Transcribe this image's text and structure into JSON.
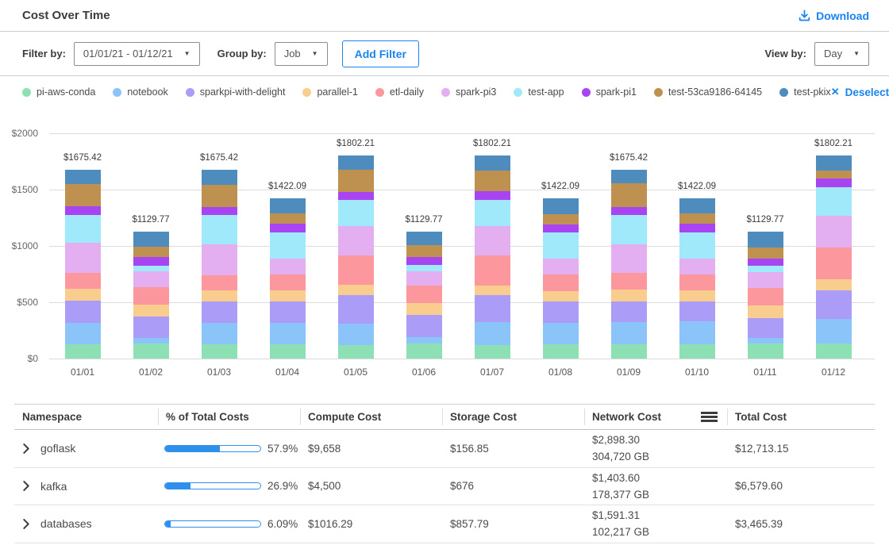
{
  "header": {
    "title": "Cost Over Time",
    "download_label": "Download"
  },
  "toolbar": {
    "filter_by_label": "Filter by:",
    "filter_value": "01/01/21 - 01/12/21",
    "group_by_label": "Group by:",
    "group_value": "Job",
    "add_filter_label": "Add Filter",
    "view_by_label": "View by:",
    "view_value": "Day"
  },
  "icons": {
    "caret_down": "▼",
    "close": "✕"
  },
  "legend": {
    "deselect_label": "Deselect All"
  },
  "colors": {
    "accent_blue": "#1a84ee",
    "progress_blue": "#2e90ea"
  },
  "chart_data": {
    "type": "bar",
    "stacked": true,
    "title": "Cost Over Time",
    "xlabel": "",
    "ylabel": "",
    "ylim": [
      0,
      2000
    ],
    "grid": true,
    "legend_position": "top",
    "y_tick_labels": [
      "$0",
      "$500",
      "$1000",
      "$1500",
      "$2000"
    ],
    "y_tick_values": [
      0,
      500,
      1000,
      1500,
      2000
    ],
    "categories": [
      "01/01",
      "01/02",
      "01/03",
      "01/04",
      "01/05",
      "01/06",
      "01/07",
      "01/08",
      "01/09",
      "01/10",
      "01/11",
      "01/12"
    ],
    "totals": [
      1675.42,
      1129.77,
      1675.42,
      1422.09,
      1802.21,
      1129.77,
      1802.21,
      1422.09,
      1675.42,
      1422.09,
      1129.77,
      1802.21
    ],
    "total_labels": [
      "$1675.42",
      "$1129.77",
      "$1675.42",
      "$1422.09",
      "$1802.21",
      "$1129.77",
      "$1802.21",
      "$1422.09",
      "$1675.42",
      "$1422.09",
      "$1129.77",
      "$1802.21"
    ],
    "series": [
      {
        "name": "pi-aws-conda",
        "color": "#8ce0b4",
        "values": [
          127,
          133,
          127,
          127,
          122,
          134,
          122,
          127,
          127,
          127,
          131,
          132
        ]
      },
      {
        "name": "notebook",
        "color": "#8ac4f8",
        "values": [
          188,
          51,
          188,
          188,
          188,
          56,
          200,
          188,
          195,
          207,
          51,
          220
        ]
      },
      {
        "name": "sparkpi-with-delight",
        "color": "#ab9cf8",
        "values": [
          196,
          191,
          195,
          195,
          251,
          199,
          242,
          190,
          183,
          176,
          177,
          256
        ]
      },
      {
        "name": "parallel-1",
        "color": "#f8cd8d",
        "values": [
          106,
          103,
          98,
          93,
          94,
          107,
          87,
          95,
          109,
          93,
          114,
          94
        ]
      },
      {
        "name": "etl-daily",
        "color": "#fc989d",
        "values": [
          147,
          154,
          129,
          147,
          258,
          153,
          263,
          145,
          146,
          147,
          152,
          283
        ]
      },
      {
        "name": "spark-pi3",
        "color": "#e4aff0",
        "values": [
          262,
          141,
          280,
          139,
          265,
          123,
          265,
          140,
          256,
          139,
          146,
          286
        ]
      },
      {
        "name": "test-app",
        "color": "#a0e9fa",
        "values": [
          252,
          51,
          256,
          234,
          228,
          56,
          230,
          235,
          256,
          234,
          56,
          248
        ]
      },
      {
        "name": "spark-pi1",
        "color": "#a844f2",
        "values": [
          73,
          77,
          73,
          71,
          71,
          72,
          75,
          70,
          73,
          71,
          64,
          81
        ]
      },
      {
        "name": "test-53ca9186-64145",
        "color": "#bf9150",
        "values": [
          196,
          94,
          195,
          93,
          196,
          108,
          188,
          95,
          213,
          93,
          94,
          71
        ]
      },
      {
        "name": "test-pkix",
        "color": "#4d8cbd",
        "values": [
          128.42,
          134.77,
          134.42,
          135.09,
          129.21,
          121.77,
          130.21,
          137.09,
          117.42,
          135.09,
          144.77,
          131.21
        ]
      }
    ]
  },
  "table": {
    "headers": {
      "namespace": "Namespace",
      "percent": "% of Total Costs",
      "compute": "Compute Cost",
      "storage": "Storage Cost",
      "network": "Network  Cost",
      "total": "Total Cost"
    },
    "rows": [
      {
        "name": "goflask",
        "percent_label": "57.9%",
        "percent_value": 57.9,
        "compute": "$9,658",
        "storage": "$156.85",
        "network_cost": "$2,898.30",
        "network_volume": "304,720 GB",
        "total": "$12,713.15"
      },
      {
        "name": "kafka",
        "percent_label": "26.9%",
        "percent_value": 26.9,
        "compute": "$4,500",
        "storage": "$676",
        "network_cost": "$1,403.60",
        "network_volume": "178,377 GB",
        "total": "$6,579.60"
      },
      {
        "name": "databases",
        "percent_label": "6.09%",
        "percent_value": 6.09,
        "compute": "$1016.29",
        "storage": "$857.79",
        "network_cost": "$1,591.31",
        "network_volume": "102,217 GB",
        "total": "$3,465.39"
      }
    ]
  }
}
